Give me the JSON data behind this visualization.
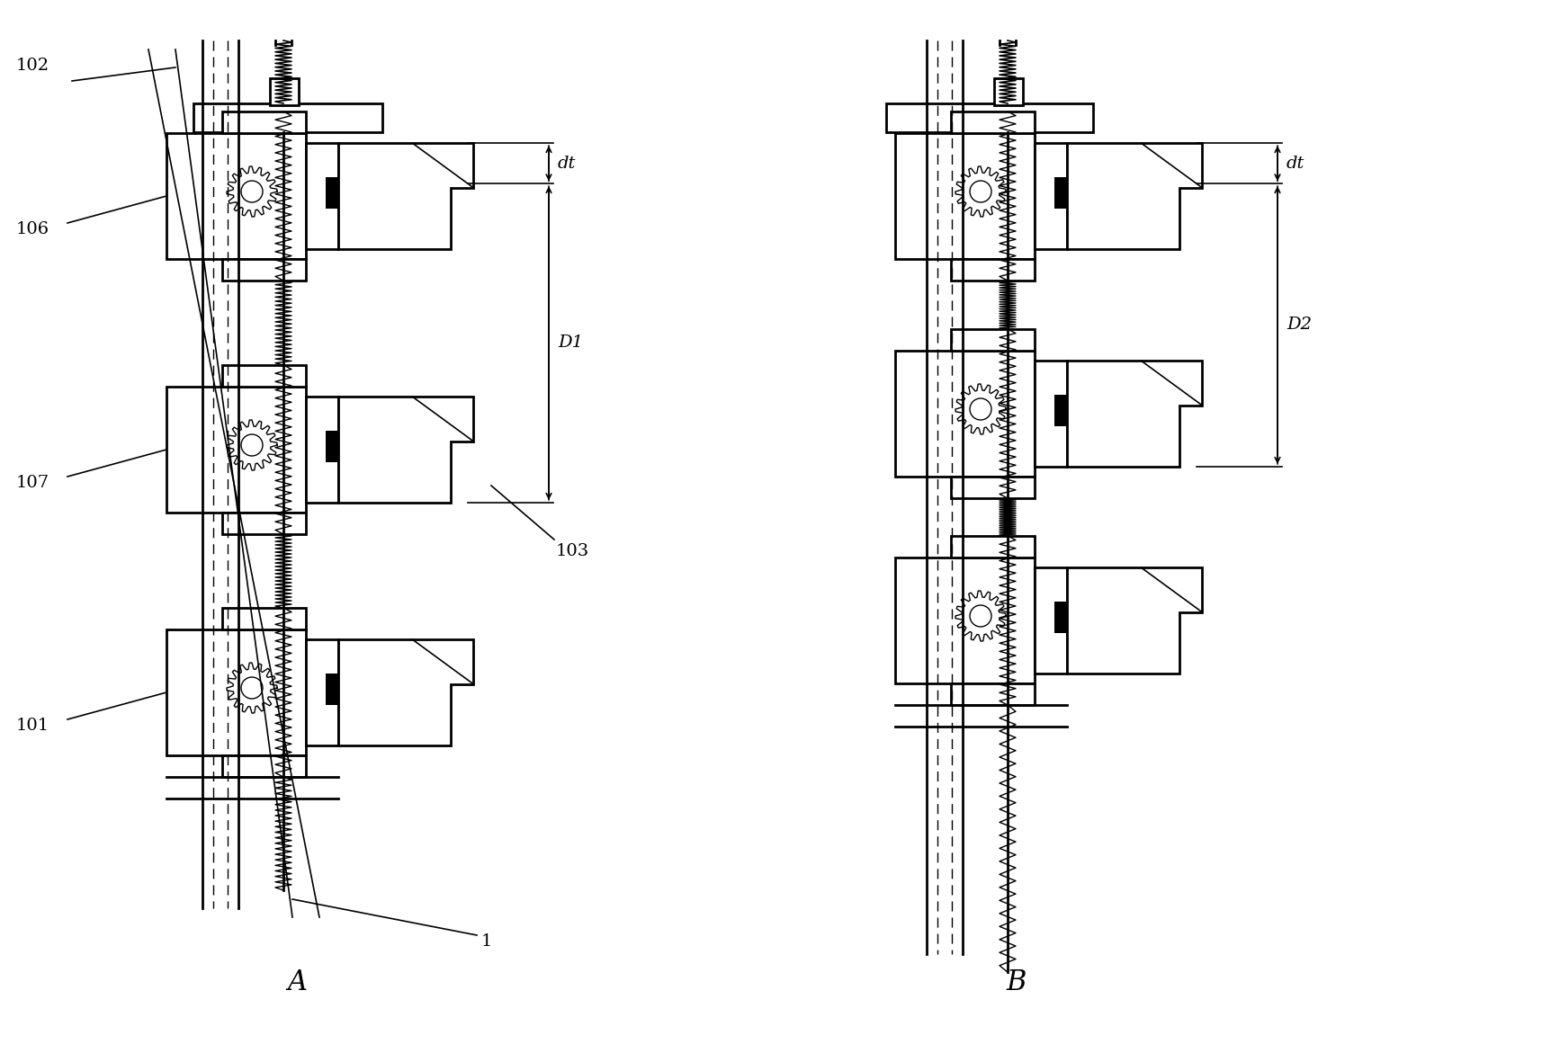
{
  "bg_color": "#ffffff",
  "fig_width": 17.14,
  "fig_height": 11.61,
  "dpi": 100,
  "lw_main": 2.0,
  "lw_thin": 1.2,
  "lw_dash": 1.0,
  "A_label": "A",
  "B_label": "B",
  "labels_A": [
    "102",
    "106",
    "107",
    "101",
    "103",
    "1"
  ],
  "labels_B": [
    "dt",
    "D2"
  ],
  "labels_dim_A": [
    "dt",
    "D1"
  ]
}
